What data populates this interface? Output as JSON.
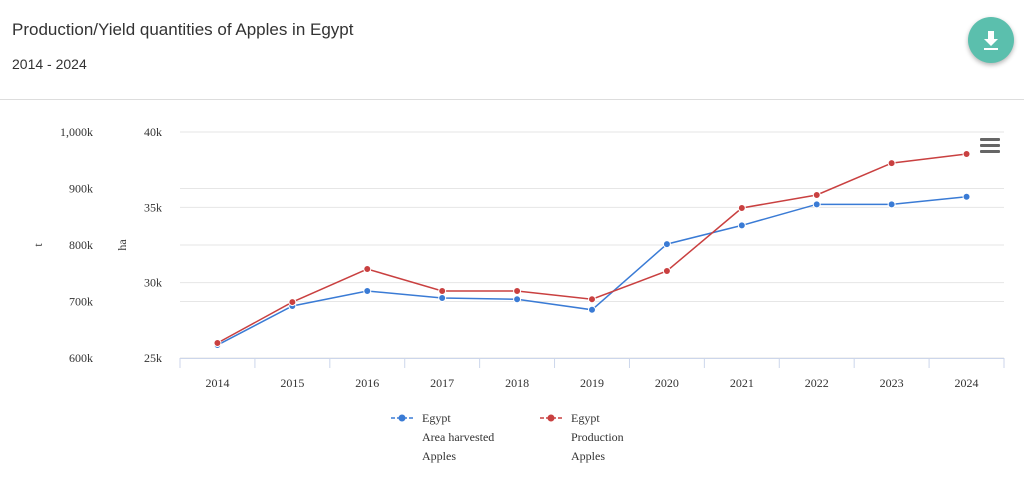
{
  "header": {
    "title": "Production/Yield quantities of Apples in Egypt",
    "subtitle": "2014 - 2024",
    "download_icon": "download-icon",
    "menu_icon": "hamburger-menu-icon"
  },
  "chart_data": {
    "type": "line",
    "title": "Production/Yield quantities of Apples in Egypt",
    "subtitle": "2014 - 2024",
    "categories": [
      "2014",
      "2015",
      "2016",
      "2017",
      "2018",
      "2019",
      "2020",
      "2021",
      "2022",
      "2023",
      "2024"
    ],
    "axes": [
      {
        "id": "t",
        "label": "t",
        "range": [
          600000,
          1000000
        ],
        "ticks": [
          "600k",
          "700k",
          "800k",
          "900k",
          "1,000k"
        ]
      },
      {
        "id": "ha",
        "label": "ha",
        "range": [
          25000,
          40000
        ],
        "ticks": [
          "25k",
          "30k",
          "35k",
          "40k"
        ]
      }
    ],
    "series": [
      {
        "name": "Egypt Area harvested Apples",
        "legend": [
          "Egypt",
          "Area harvested",
          "Apples"
        ],
        "axis": "ha",
        "color": "#3a7bd5",
        "values": [
          25860,
          28450,
          29450,
          28980,
          28900,
          28200,
          32560,
          33800,
          35200,
          35200,
          35700
        ]
      },
      {
        "name": "Egypt Production Apples",
        "legend": [
          "Egypt",
          "Production",
          "Apples"
        ],
        "axis": "t",
        "color": "#c94040",
        "values": [
          626500,
          699000,
          757500,
          718600,
          718600,
          704000,
          754000,
          865500,
          888500,
          945000,
          961000
        ]
      }
    ],
    "grid": true,
    "legend_position": "bottom"
  }
}
